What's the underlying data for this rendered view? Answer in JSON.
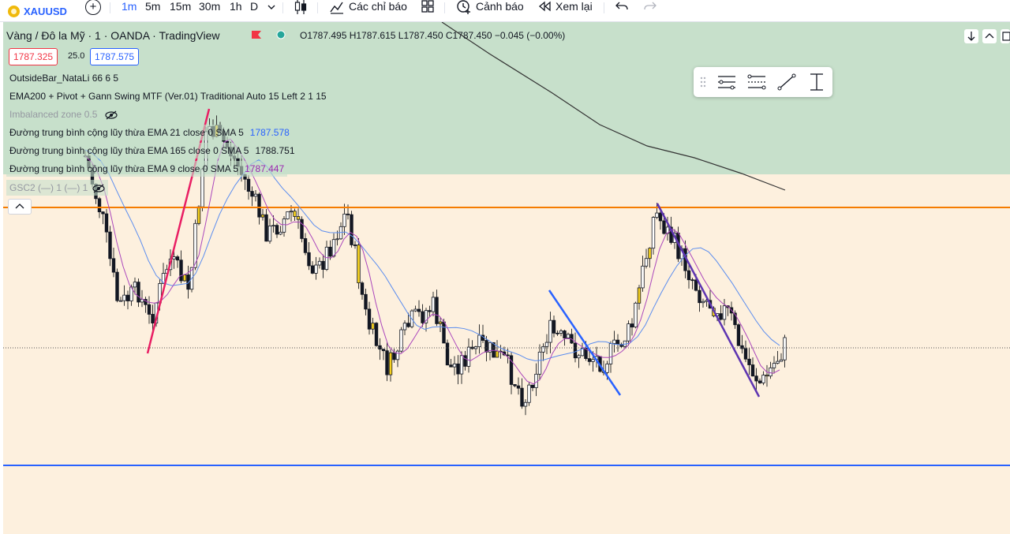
{
  "toolbar": {
    "symbol": "XAUUSD",
    "timeframes": [
      "1m",
      "5m",
      "15m",
      "30m",
      "1h",
      "D"
    ],
    "active_timeframe": "1m",
    "indicators_label": "Các chỉ báo",
    "alert_label": "Cảnh báo",
    "replay_label": "Xem lại"
  },
  "legend": {
    "title": "Vàng / Đô la Mỹ · 1 · OANDA · TradingView",
    "ohlc": "O1787.495  H1787.615  L1787.450  C1787.450  −0.045 (−0.00%)",
    "bid": "1787.325",
    "spread": "25.0",
    "ask": "1787.575"
  },
  "indicators": [
    {
      "name": "OutsideBar_NataLi 66 6 5",
      "value": ""
    },
    {
      "name": "EMA200 + Pivot + Gann Swing MTF (Ver.01) Traditional Auto 15 Left 2 1 15",
      "value": ""
    },
    {
      "name": "Imbalanced zone 0.5",
      "value": ""
    },
    {
      "name": "Đường trung bình cộng lũy thừa EMA 21 close 0 SMA 5",
      "value": "1787.578"
    },
    {
      "name": "Đường trung bình cộng lũy thừa EMA 165 close 0 SMA 5",
      "value": "1788.751"
    },
    {
      "name": "Đường trung bình cộng lũy thừa EMA 9 close 0 SMA 5",
      "value": "1787.447"
    },
    {
      "name": "GSC2 (—) 1 (—) 1",
      "value": ""
    }
  ],
  "colors": {
    "accent": "#2962ff",
    "zone_green": "#c7e0cb",
    "chart_bg": "#fdf0de",
    "orange_line": "#f57c00",
    "blue_line": "#2962ff",
    "ema21": "#5b8def",
    "ema9": "#ab47bc",
    "ema165": "#333333",
    "pivot_red": "#e91e63",
    "pivot_purple": "#5e35b1",
    "ema21_value": "#2962ff",
    "ema165_value": "#131722",
    "ema9_value": "#9c27b0"
  },
  "icons": [
    "add-symbol-icon",
    "candle-type-icon",
    "indicators-icon",
    "templates-icon",
    "alert-icon",
    "replay-icon",
    "undo-icon",
    "redo-icon",
    "drag-handle-icon",
    "fib-icon",
    "pattern-icon",
    "trendline-icon",
    "measure-icon",
    "hide-eye-icon"
  ]
}
